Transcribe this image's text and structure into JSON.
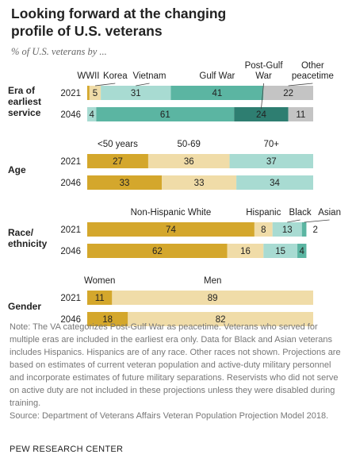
{
  "title": "Looking forward at the changing profile of U.S. veterans",
  "subtitle": "% of U.S. veterans by ...",
  "chart_data": [
    {
      "type": "bar",
      "orientation": "horizontal",
      "stacked": true,
      "title": "Era of earliest service",
      "categories": [
        "2021",
        "2046"
      ],
      "series": [
        {
          "name": "WWII",
          "color": "#d4a72c",
          "values": [
            1,
            null
          ],
          "value_labels": [
            null,
            null
          ]
        },
        {
          "name": "Korea",
          "color": "#f0dca8",
          "values": [
            5,
            null
          ]
        },
        {
          "name": "Vietnam",
          "color": "#a8dbd2",
          "values": [
            31,
            4
          ]
        },
        {
          "name": "Gulf War",
          "color": "#5bb5a2",
          "values": [
            41,
            61
          ]
        },
        {
          "name": "Post-Gulf War",
          "color": "#2e7e71",
          "values": [
            null,
            24
          ]
        },
        {
          "name": "Other peacetime",
          "color": "#c4c4c4",
          "values": [
            22,
            11
          ]
        }
      ]
    },
    {
      "type": "bar",
      "orientation": "horizontal",
      "stacked": true,
      "title": "Age",
      "categories": [
        "2021",
        "2046"
      ],
      "series": [
        {
          "name": "<50 years",
          "color": "#d4a72c",
          "values": [
            27,
            33
          ]
        },
        {
          "name": "50-69",
          "color": "#f0dca8",
          "values": [
            36,
            33
          ]
        },
        {
          "name": "70+",
          "color": "#a8dbd2",
          "values": [
            37,
            34
          ]
        }
      ]
    },
    {
      "type": "bar",
      "orientation": "horizontal",
      "stacked": true,
      "title": "Race/ ethnicity",
      "categories": [
        "2021",
        "2046"
      ],
      "series": [
        {
          "name": "Non-Hispanic White",
          "color": "#d4a72c",
          "values": [
            74,
            62
          ]
        },
        {
          "name": "Hispanic",
          "color": "#f0dca8",
          "values": [
            8,
            16
          ]
        },
        {
          "name": "Black",
          "color": "#a8dbd2",
          "values": [
            13,
            15
          ]
        },
        {
          "name": "Asian",
          "color": "#5bb5a2",
          "values": [
            2,
            4
          ]
        }
      ]
    },
    {
      "type": "bar",
      "orientation": "horizontal",
      "stacked": true,
      "title": "Gender",
      "categories": [
        "2021",
        "2046"
      ],
      "series": [
        {
          "name": "Women",
          "color": "#d4a72c",
          "values": [
            11,
            18
          ]
        },
        {
          "name": "Men",
          "color": "#f0dca8",
          "values": [
            89,
            82
          ]
        }
      ]
    }
  ],
  "note": "Note: The VA categorizes Post-Gulf War as peacetime. Veterans who served for multiple eras are included in the earliest era only. Data for Black and Asian veterans includes Hispanics. Hispanics are of any race. Other races not shown. Projections are based on estimates of current veteran population and active-duty military personnel and incorporate estimates of future military separations. Reservists who did not serve on active duty are not included in these projections unless they were disabled during training.",
  "source": "Source: Department of Veterans Affairs Veteran Population Projection Model 2018.",
  "footer": "PEW RESEARCH CENTER"
}
